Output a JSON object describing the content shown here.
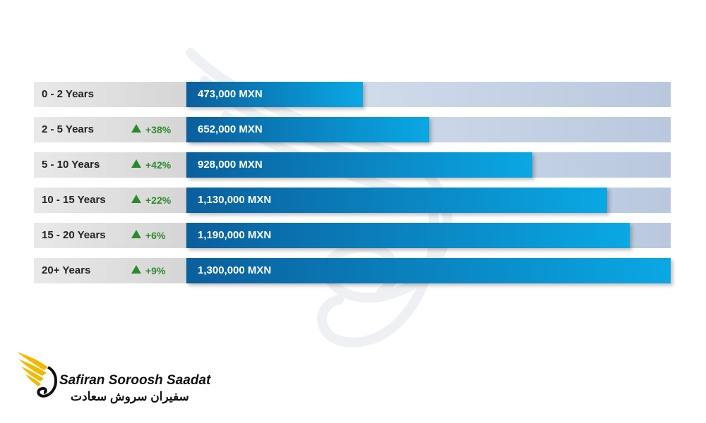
{
  "chart_data": {
    "type": "bar",
    "orientation": "horizontal",
    "categories": [
      "0 - 2 Years",
      "2 - 5 Years",
      "5 - 10 Years",
      "10 - 15 Years",
      "15 - 20 Years",
      "20+ Years"
    ],
    "values": [
      473000,
      652000,
      928000,
      1130000,
      1190000,
      1300000
    ],
    "value_labels": [
      "473,000 MXN",
      "652,000 MXN",
      "928,000 MXN",
      "1,130,000 MXN",
      "1,190,000 MXN",
      "1,300,000 MXN"
    ],
    "changes": [
      "",
      "+38%",
      "+42%",
      "+22%",
      "+6%",
      "+9%"
    ],
    "xlim": [
      0,
      1300000
    ],
    "title": "",
    "xlabel": "",
    "ylabel": ""
  },
  "branding": {
    "name_en": "Safiran Soroosh Saadat",
    "name_fa": "سفیران سروش سعادت"
  },
  "colors": {
    "bar_start": "#0a5f9c",
    "bar_end": "#0aa8e4",
    "track": "#c9d5e6",
    "up_arrow": "#2a8a2a",
    "logo_gold": "#f3b800"
  }
}
